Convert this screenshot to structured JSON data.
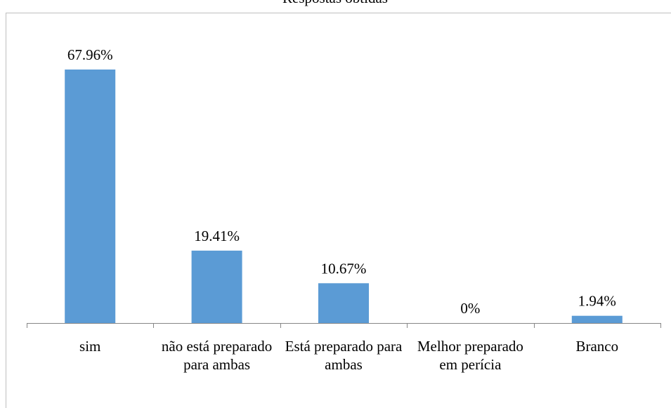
{
  "chart_data": {
    "type": "bar",
    "title": "Respostas obtidas",
    "categories": [
      "sim",
      "não está preparado para ambas",
      "Está preparado para ambas",
      "Melhor preparado em perícia",
      "Branco"
    ],
    "values": [
      67.96,
      19.41,
      10.67,
      0,
      1.94
    ],
    "value_labels": [
      "67.96%",
      "19.41%",
      "10.67%",
      "0%",
      "1.94%"
    ],
    "color": "#5b9bd5"
  }
}
